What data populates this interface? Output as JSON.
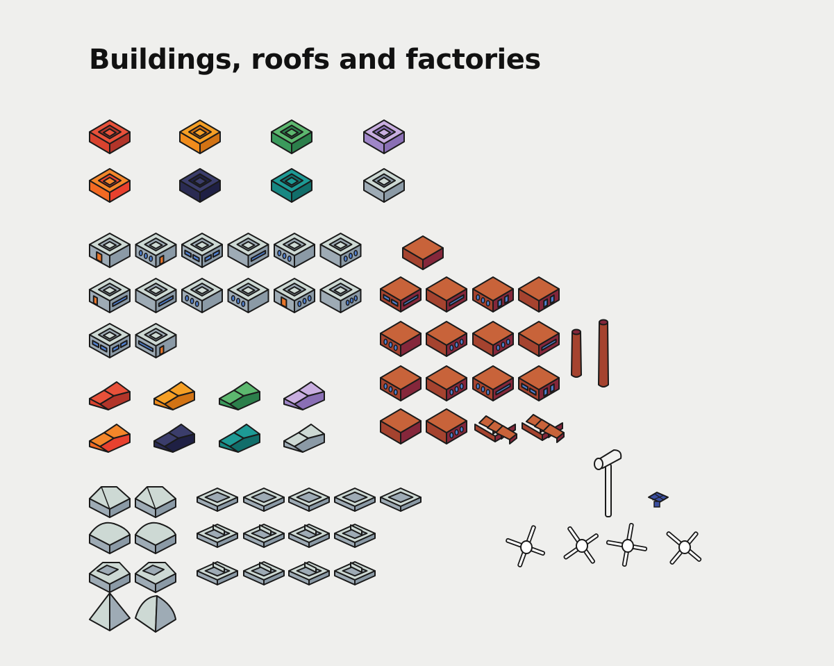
{
  "page": {
    "title": "Buildings, roofs and factories"
  },
  "palette": {
    "outline": "#1a1a1a",
    "background": "#efefed",
    "red": {
      "top": "#e8513a",
      "left": "#d9432f",
      "right": "#b2352a"
    },
    "orange": {
      "top": "#f59f25",
      "left": "#f08c1c",
      "right": "#d27314"
    },
    "green": {
      "top": "#5db86f",
      "left": "#3b9a5c",
      "right": "#2c7f4b"
    },
    "lilac": {
      "top": "#c9aee0",
      "left": "#9f86c8",
      "right": "#8a6fb5"
    },
    "amber": {
      "top": "#f4862a",
      "left": "#f26a23",
      "right": "#e8412f"
    },
    "navy": {
      "top": "#3b3d6b",
      "left": "#2a2b52",
      "right": "#1f2044"
    },
    "teal": {
      "top": "#1d9a95",
      "left": "#178883",
      "right": "#116e6a"
    },
    "grey": {
      "top": "#cdd9d4",
      "left": "#9eabb5",
      "right": "#8b9aa6"
    },
    "brick": {
      "top": "#c8633a",
      "left": "#a5432f",
      "right": "#85273b"
    },
    "window_blue": "#4f7fd0",
    "window_orange": "#e8762b"
  },
  "icons": {
    "plain_blocks": [
      "red",
      "orange",
      "green",
      "lilac",
      "amber",
      "navy",
      "teal",
      "grey"
    ],
    "office_window_styles": [
      "door-arched",
      "dots-3-orange-door",
      "pills-2",
      "bar-long",
      "dots-3",
      "dots-3-alt",
      "door-bar",
      "bar-long",
      "dots-3",
      "dots-3",
      "door-dots",
      "dots-3-right",
      "pills-2",
      "bar-door"
    ],
    "gable_roofs": [
      "red",
      "orange",
      "green",
      "lilac",
      "amber",
      "navy",
      "teal",
      "grey"
    ],
    "factory_window_styles": [
      "pills-2",
      "bar-long",
      "dots-3",
      "arches-2",
      "dots-3",
      "dots-3",
      "pills-2",
      "bar-long",
      "dots-3",
      "dots-3",
      "pills-2",
      "pills-2",
      "plain",
      "dots-3"
    ],
    "chimneys": 2,
    "sawtooth_roofs": 2,
    "roof_shapes": [
      "hip",
      "gable",
      "dome-left",
      "dome-right",
      "flat-hip",
      "flat-gable",
      "pyramid",
      "cone-dome"
    ],
    "roof_frames": 14,
    "street_lamp": "lamp-icon",
    "solar_panel": "solar-panel-icon",
    "wind_turbines": 4
  }
}
